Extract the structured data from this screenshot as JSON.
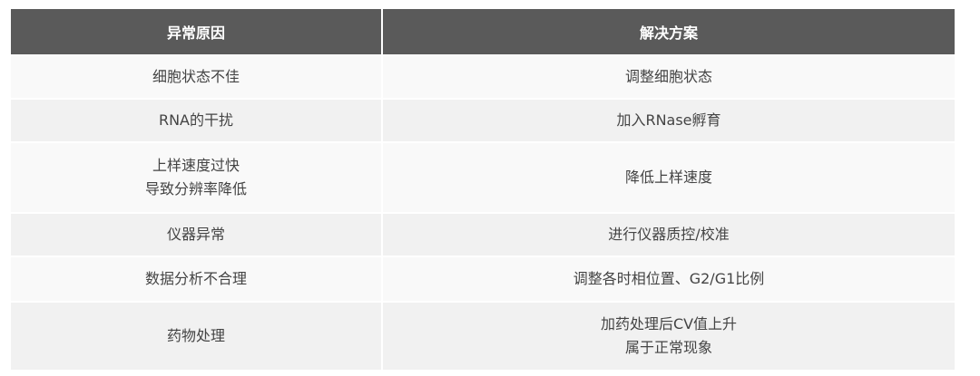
{
  "table": {
    "headers": [
      "异常原因",
      "解决方案"
    ],
    "rows": [
      {
        "cause": [
          "细胞状态不佳"
        ],
        "solution": [
          "调整细胞状态"
        ]
      },
      {
        "cause": [
          "RNA的干扰"
        ],
        "solution": [
          "加入RNase孵育"
        ]
      },
      {
        "cause": [
          "上样速度过快",
          "导致分辨率降低"
        ],
        "solution": [
          "降低上样速度"
        ]
      },
      {
        "cause": [
          "仪器异常"
        ],
        "solution": [
          "进行仪器质控/校准"
        ]
      },
      {
        "cause": [
          "数据分析不合理"
        ],
        "solution": [
          "调整各时相位置、G2/G1比例"
        ]
      },
      {
        "cause": [
          "药物处理"
        ],
        "solution": [
          "加药处理后CV值上升",
          "属于正常现象"
        ]
      }
    ],
    "colors": {
      "header_bg": "#5a5a5a",
      "row_light": "#f9f9f9",
      "row_alt": "#f1f1f1"
    }
  }
}
